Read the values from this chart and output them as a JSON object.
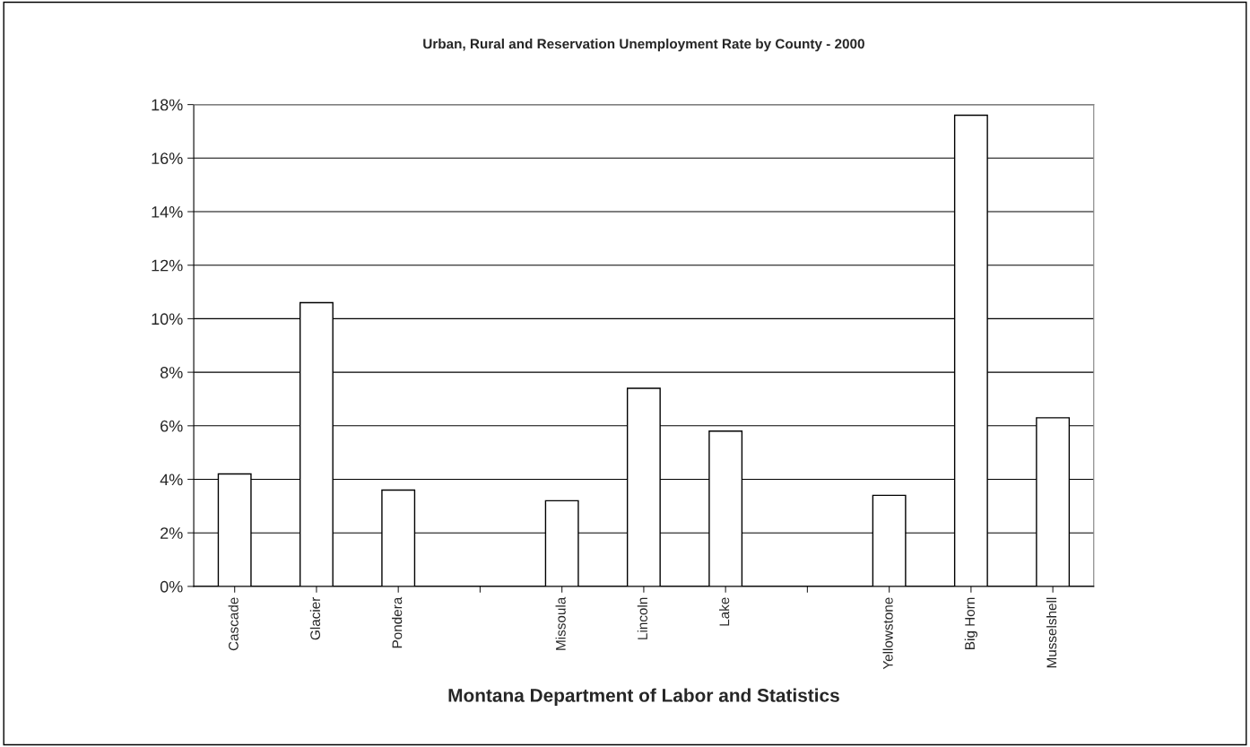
{
  "chart_data": {
    "type": "bar",
    "title": "Urban, Rural and Reservation Unemployment Rate by County - 2000",
    "xlabel": "Montana Department of Labor and Statistics",
    "categories": [
      "Cascade",
      "Glacier",
      "Pondera",
      null,
      "Missoula",
      "Lincoln",
      "Lake",
      null,
      "Yellowstone",
      "Big Horn",
      "Musselshell"
    ],
    "values": [
      4.2,
      10.6,
      3.6,
      null,
      3.2,
      7.4,
      5.8,
      null,
      3.4,
      17.6,
      6.3
    ],
    "color": "#ffffff",
    "ylim": [
      0,
      18
    ],
    "yticks": [
      {
        "value": 0,
        "label": "0%"
      },
      {
        "value": 2,
        "label": "2%"
      },
      {
        "value": 4,
        "label": "4%"
      },
      {
        "value": 6,
        "label": "6%"
      },
      {
        "value": 8,
        "label": "8%"
      },
      {
        "value": 10,
        "label": "10%"
      },
      {
        "value": 12,
        "label": "12%"
      },
      {
        "value": 14,
        "label": "14%"
      },
      {
        "value": 16,
        "label": "16%"
      },
      {
        "value": 18,
        "label": "18%"
      }
    ],
    "grid": "y"
  }
}
